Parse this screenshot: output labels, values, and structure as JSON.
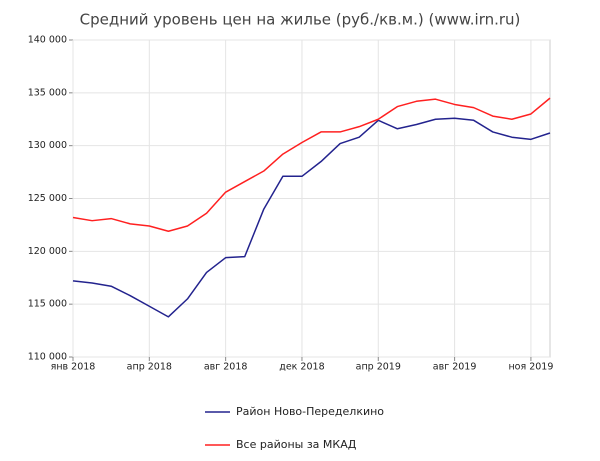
{
  "chart_data": {
    "type": "line",
    "title": "Средний уровень цен на жилье (руб./кв.м.) (www.irn.ru)",
    "x": [
      0,
      4,
      8,
      12,
      16,
      20,
      24,
      28,
      32,
      36,
      40,
      44,
      48,
      52,
      56,
      60,
      64,
      68,
      72,
      76,
      80,
      84,
      88,
      92,
      96,
      100
    ],
    "xlim": [
      0,
      100
    ],
    "xticks": [
      {
        "value": 0,
        "label": "янв 2018"
      },
      {
        "value": 16,
        "label": "апр 2018"
      },
      {
        "value": 32,
        "label": "авг 2018"
      },
      {
        "value": 48,
        "label": "дек 2018"
      },
      {
        "value": 64,
        "label": "апр 2019"
      },
      {
        "value": 80,
        "label": "авг 2019"
      },
      {
        "value": 96,
        "label": "ноя 2019"
      }
    ],
    "ylim": [
      110000,
      140000
    ],
    "yticks": [
      {
        "value": 110000,
        "label": "110 000"
      },
      {
        "value": 115000,
        "label": "115 000"
      },
      {
        "value": 120000,
        "label": "120 000"
      },
      {
        "value": 125000,
        "label": "125 000"
      },
      {
        "value": 130000,
        "label": "130 000"
      },
      {
        "value": 135000,
        "label": "135 000"
      },
      {
        "value": 140000,
        "label": "140 000"
      }
    ],
    "grid": true,
    "series": [
      {
        "name": "Район Ново-Переделкино",
        "color": "#23238e",
        "values": [
          117200,
          117000,
          116700,
          115800,
          114800,
          113800,
          115500,
          118000,
          119400,
          119500,
          124000,
          127100,
          127100,
          128500,
          130200,
          130800,
          132400,
          131600,
          132000,
          132500,
          132600,
          132400,
          131300,
          130800,
          130600,
          131200
        ]
      },
      {
        "name": "Все районы за МКАД",
        "color": "#ff2020",
        "values": [
          123200,
          122900,
          123100,
          122600,
          122400,
          121900,
          122400,
          123600,
          125600,
          126600,
          127600,
          129200,
          130300,
          131300,
          131300,
          131800,
          132500,
          133700,
          134200,
          134400,
          133900,
          133600,
          132800,
          132500,
          133000,
          134500
        ]
      }
    ]
  }
}
